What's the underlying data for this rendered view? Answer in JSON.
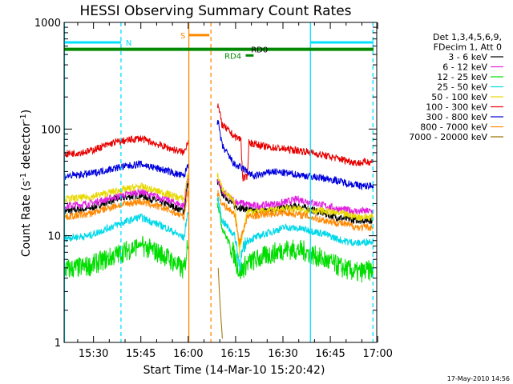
{
  "chart_data": {
    "type": "line",
    "title": "HESSI Observing Summary Count Rates",
    "xlabel": "Start Time (14-Mar-10 15:20:42)",
    "ylabel_parts": [
      "Count Rate (s",
      "-1",
      " detector",
      "-1",
      ")"
    ],
    "x_unit": "minutes since 15:20:42",
    "xlim": [
      0,
      99
    ],
    "ylim": [
      1,
      1000
    ],
    "yscale": "log",
    "grid": false,
    "legend_position": "right",
    "x_ticks": [
      {
        "label": "15:30",
        "at": 9.3
      },
      {
        "label": "15:45",
        "at": 24.3
      },
      {
        "label": "16:00",
        "at": 39.3
      },
      {
        "label": "16:15",
        "at": 54.3
      },
      {
        "label": "16:30",
        "at": 69.3
      },
      {
        "label": "16:45",
        "at": 84.3
      },
      {
        "label": "17:00",
        "at": 99.3
      }
    ],
    "y_ticks": [
      {
        "label": "1",
        "at": 1
      },
      {
        "label": "10",
        "at": 10
      },
      {
        "label": "100",
        "at": 100
      },
      {
        "label": "1000",
        "at": 1000
      }
    ],
    "legend_header": [
      "Det 1,3,4,5,6,9,",
      "FDecim 1, Att 0"
    ],
    "gaps": [
      [
        39.5,
        48.5
      ]
    ],
    "series": [
      {
        "name": "3 - 6 keV",
        "color": "#000000",
        "points": [
          [
            0,
            17
          ],
          [
            8,
            18
          ],
          [
            16,
            22
          ],
          [
            24,
            24
          ],
          [
            32,
            20
          ],
          [
            38,
            17
          ],
          [
            39,
            30
          ],
          [
            48.7,
            32
          ],
          [
            50,
            25
          ],
          [
            54,
            19
          ],
          [
            60,
            17
          ],
          [
            68,
            18
          ],
          [
            74,
            19
          ],
          [
            80,
            17
          ],
          [
            86,
            15
          ],
          [
            92,
            14
          ],
          [
            98,
            14
          ]
        ]
      },
      {
        "name": "6 - 12 keV",
        "color": "#e020e0",
        "points": [
          [
            0,
            19
          ],
          [
            8,
            20
          ],
          [
            16,
            23
          ],
          [
            24,
            26
          ],
          [
            32,
            22
          ],
          [
            38,
            19
          ],
          [
            39,
            34
          ],
          [
            48.7,
            34
          ],
          [
            50,
            26
          ],
          [
            54,
            21
          ],
          [
            60,
            19
          ],
          [
            68,
            20
          ],
          [
            74,
            22
          ],
          [
            80,
            20
          ],
          [
            86,
            18
          ],
          [
            92,
            17
          ],
          [
            98,
            17
          ]
        ]
      },
      {
        "name": "12 - 25 keV",
        "color": "#00dd00",
        "points": [
          [
            0,
            4.8
          ],
          [
            8,
            5.2
          ],
          [
            16,
            6.5
          ],
          [
            24,
            8.2
          ],
          [
            32,
            6.5
          ],
          [
            38,
            4.7
          ],
          [
            39,
            8
          ],
          [
            48.7,
            20
          ],
          [
            50,
            12
          ],
          [
            54,
            6.5
          ],
          [
            55.5,
            4.5
          ],
          [
            58,
            5.5
          ],
          [
            64,
            6.5
          ],
          [
            70,
            7.5
          ],
          [
            76,
            7.2
          ],
          [
            82,
            6
          ],
          [
            88,
            5
          ],
          [
            93,
            4.5
          ],
          [
            98,
            4.8
          ]
        ]
      },
      {
        "name": "25 - 50 keV",
        "color": "#00d8e8",
        "points": [
          [
            0,
            9.5
          ],
          [
            8,
            10
          ],
          [
            16,
            12.5
          ],
          [
            24,
            15
          ],
          [
            32,
            12
          ],
          [
            38,
            9.5
          ],
          [
            39,
            16
          ],
          [
            48.7,
            22
          ],
          [
            50,
            14
          ],
          [
            54,
            10
          ],
          [
            55.5,
            5.5
          ],
          [
            58,
            9
          ],
          [
            64,
            10.5
          ],
          [
            70,
            12
          ],
          [
            76,
            11.5
          ],
          [
            82,
            10.5
          ],
          [
            88,
            9
          ],
          [
            93,
            8.5
          ],
          [
            98,
            9
          ]
        ]
      },
      {
        "name": "50 - 100 keV",
        "color": "#e8d800",
        "points": [
          [
            0,
            22
          ],
          [
            8,
            23
          ],
          [
            16,
            26
          ],
          [
            24,
            29
          ],
          [
            32,
            25
          ],
          [
            38,
            22
          ],
          [
            39,
            36
          ],
          [
            48.7,
            36
          ],
          [
            50,
            28
          ],
          [
            54,
            20
          ],
          [
            55.5,
            7.5
          ],
          [
            58,
            17
          ],
          [
            64,
            17
          ],
          [
            70,
            18
          ],
          [
            76,
            17.5
          ],
          [
            82,
            17
          ],
          [
            88,
            16
          ],
          [
            93,
            15
          ],
          [
            98,
            15
          ]
        ]
      },
      {
        "name": "100 - 300 keV",
        "color": "#e80000",
        "points": [
          [
            0,
            58
          ],
          [
            8,
            62
          ],
          [
            16,
            75
          ],
          [
            24,
            82
          ],
          [
            32,
            68
          ],
          [
            38,
            60
          ],
          [
            39,
            75
          ],
          [
            48.7,
            170
          ],
          [
            50,
            110
          ],
          [
            54,
            85
          ],
          [
            56,
            80
          ],
          [
            56.5,
            35
          ],
          [
            58,
            35
          ],
          [
            58.5,
            75
          ],
          [
            64,
            68
          ],
          [
            70,
            65
          ],
          [
            76,
            62
          ],
          [
            82,
            57
          ],
          [
            88,
            52
          ],
          [
            93,
            48
          ],
          [
            98,
            50
          ]
        ]
      },
      {
        "name": "300 - 800 keV",
        "color": "#0000dd",
        "points": [
          [
            0,
            36
          ],
          [
            8,
            38
          ],
          [
            16,
            43
          ],
          [
            24,
            47
          ],
          [
            32,
            41
          ],
          [
            38,
            36
          ],
          [
            39,
            45
          ],
          [
            48.7,
            120
          ],
          [
            50,
            70
          ],
          [
            54,
            46
          ],
          [
            57,
            42
          ],
          [
            60,
            36
          ],
          [
            66,
            40
          ],
          [
            72,
            38
          ],
          [
            78,
            36
          ],
          [
            84,
            34
          ],
          [
            90,
            31
          ],
          [
            95,
            29
          ],
          [
            98,
            30
          ]
        ]
      },
      {
        "name": "800 - 7000 keV",
        "color": "#ff8800",
        "points": [
          [
            0,
            15
          ],
          [
            8,
            16
          ],
          [
            16,
            19
          ],
          [
            24,
            21
          ],
          [
            32,
            18
          ],
          [
            38,
            15
          ],
          [
            39,
            25
          ],
          [
            48.7,
            25
          ],
          [
            50,
            20
          ],
          [
            54,
            16
          ],
          [
            55.5,
            8.5
          ],
          [
            58,
            15
          ],
          [
            64,
            16
          ],
          [
            70,
            16.5
          ],
          [
            76,
            15.5
          ],
          [
            82,
            14
          ],
          [
            88,
            13
          ],
          [
            93,
            12
          ],
          [
            98,
            12
          ]
        ]
      },
      {
        "name": "7000 - 20000 keV",
        "color": "#9a7000",
        "points": [
          [
            48.8,
            5
          ],
          [
            49.3,
            2.5
          ],
          [
            49.8,
            1.5
          ],
          [
            50.2,
            1
          ]
        ]
      }
    ],
    "overlays": [
      {
        "label": "N",
        "color": "#00e0ff",
        "kind": "bar",
        "y": 650,
        "segments": [
          [
            0,
            18
          ]
        ],
        "label_at": 19.5
      },
      {
        "label": "N",
        "color": "#00e0ff",
        "kind": "bar",
        "y": 650,
        "segments": [
          [
            78,
            98
          ]
        ],
        "label_at": null
      },
      {
        "label": "S",
        "color": "#ff8800",
        "kind": "bar",
        "y": 760,
        "segments": [
          [
            39.5,
            46
          ]
        ],
        "label_at": 36.8
      },
      {
        "label": "RD0",
        "color": "#008800",
        "kind": "line",
        "y": 560,
        "segments": [
          [
            0,
            98
          ]
        ],
        "label_at": 59.2
      },
      {
        "label": "RD4",
        "color": "#008800",
        "kind": "bar",
        "y": 490,
        "segments": [
          [
            57.5,
            60
          ]
        ],
        "label_at": 50.8
      }
    ],
    "vlines": [
      {
        "x": 0.1,
        "color": "#00e0ff",
        "style": "solid"
      },
      {
        "x": 18,
        "color": "#00e0ff",
        "style": "dashed"
      },
      {
        "x": 78,
        "color": "#00e0ff",
        "style": "solid"
      },
      {
        "x": 97.8,
        "color": "#00e0ff",
        "style": "dashed"
      },
      {
        "x": 39.5,
        "color": "#ff8800",
        "style": "solid"
      },
      {
        "x": 46.5,
        "color": "#ff8800",
        "style": "dashed"
      }
    ]
  },
  "stamp": "17-May-2010 14:56"
}
